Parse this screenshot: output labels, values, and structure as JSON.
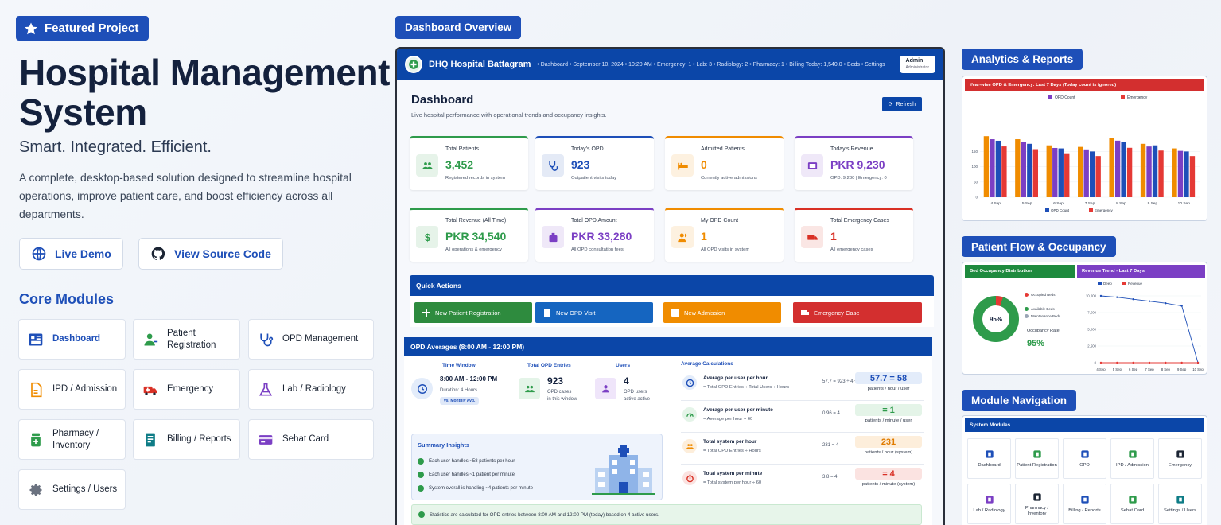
{
  "hero": {
    "badge": "Featured Project",
    "title": "Hospital Management System",
    "tagline": "Smart. Integrated. Efficient.",
    "description": "A complete, desktop-based solution designed to streamline hospital operations, improve patient care, and boost efficiency across all departments.",
    "live_demo": "Live Demo",
    "view_source": "View Source Code"
  },
  "core_modules": {
    "title": "Core Modules",
    "items": [
      "Dashboard",
      "Patient Registration",
      "OPD Management",
      "IPD / Admission",
      "Emergency",
      "Lab / Radiology",
      "Pharmacy / Inventory",
      "Billing / Reports",
      "Sehat Card",
      "Settings / Users"
    ]
  },
  "labels": {
    "dashboard_overview": "Dashboard Overview",
    "analytics": "Analytics & Reports",
    "patient_flow": "Patient Flow & Occupancy",
    "module_nav": "Module Navigation"
  },
  "dashboard": {
    "hospital": "DHQ Hospital Battagram",
    "meta": "•  Dashboard  •  September 10, 2024  •  10:20 AM  •  Emergency: 1  •  Lab: 3  •  Radiology: 2  •  Pharmacy: 1  •  Billing  Today: 1,540.0  •  Beds  •  Settings",
    "admin": "Admin",
    "admin_role": "Administrator",
    "title": "Dashboard",
    "subtitle": "Live hospital performance with operational trends and occupancy insights.",
    "refresh": "Refresh",
    "cards": [
      {
        "label": "Total Patients",
        "value": "3,452",
        "sub": "Registered records in system",
        "color": "#2e9b4b"
      },
      {
        "label": "Today's OPD",
        "value": "923",
        "sub": "Outpatient visits today",
        "color": "#1e4fb8"
      },
      {
        "label": "Admitted Patients",
        "value": "0",
        "sub": "Currently active admissions",
        "color": "#f08c00"
      },
      {
        "label": "Today's Revenue",
        "value": "PKR 9,230",
        "sub": "OPD: 9,230 | Emergency: 0",
        "color": "#7b3fc4"
      },
      {
        "label": "Total Revenue (All Time)",
        "value": "PKR 34,540",
        "sub": "All operations & emergency",
        "color": "#2e9b4b"
      },
      {
        "label": "Total OPD Amount",
        "value": "PKR 33,280",
        "sub": "All OPD consultation fees",
        "color": "#7b3fc4"
      },
      {
        "label": "My OPD Count",
        "value": "1",
        "sub": "All OPD visits in system",
        "color": "#f08c00"
      },
      {
        "label": "Total Emergency Cases",
        "value": "1",
        "sub": "All emergency cases",
        "color": "#d93025"
      }
    ],
    "quick_actions": {
      "title": "Quick Actions",
      "buttons": [
        "New Patient Registration",
        "New OPD Visit",
        "New Admission",
        "Emergency Case"
      ]
    },
    "opd": {
      "title": "OPD Averages (8:00 AM - 12:00 PM)",
      "time_window_label": "Time Window",
      "time_window": "8:00 AM - 12:00 PM",
      "duration": "Duration: 4 Hours",
      "vs": "vs. Monthly Avg.",
      "total_label": "Total OPD Entries",
      "total": "923",
      "total_sub1": "OPD cases",
      "total_sub2": "in this window",
      "users_label": "Users",
      "users": "4",
      "users_sub1": "OPD users",
      "users_sub2": "active active",
      "avg_title": "Average Calculations",
      "rows": [
        {
          "title": "Average per user per hour",
          "formula": "= Total OPD Entries ÷ Total Users ÷ Hours",
          "eq": "57.7 = 923 ÷ 4 ÷ 4",
          "result": "57.7 = 58",
          "unit": "patients / hour / user"
        },
        {
          "title": "Average per user per minute",
          "formula": "= Average per hour ÷ 60",
          "eq": "0.96 = 4",
          "result": "= 1",
          "unit": "patients / minute / user"
        },
        {
          "title": "Total system per hour",
          "formula": "= Total OPD Entries ÷ Hours",
          "eq": "231 = 4",
          "result": "231",
          "unit": "patients / hour (system)"
        },
        {
          "title": "Total system per minute",
          "formula": "= Total system per hour ÷ 60",
          "eq": "3.8 = 4",
          "result": "= 4",
          "unit": "patients / minute (system)"
        }
      ],
      "insights_title": "Summary Insights",
      "insights": [
        "Each user handles ~58 patients per hour",
        "Each user handles ~1 patient per minute",
        "System overall is handling ~4 patients per minute"
      ],
      "note": "Statistics are calculated for OPD entries between 8:00 AM and 12:00 PM (today) based on 4 active users."
    }
  },
  "analytics": {
    "chart_title": "Year-wise OPD & Emergency: Last 7 Days (Today count is ignored)",
    "legend": [
      "OPD Count",
      "Emergency"
    ]
  },
  "patient_flow": {
    "bed_title": "Bed Occupancy Distribution",
    "occupied": "Occupied Beds",
    "available": "Available Beds",
    "maintenance": "Maintenance Beds",
    "rate_label": "Occupancy Rate",
    "rate": "95%",
    "donut_value": "95%",
    "trend_title": "Revenue Trend - Last 7 Days",
    "trend_legend": [
      "Deep",
      "Revenue"
    ]
  },
  "module_nav": {
    "title": "System Modules",
    "items": [
      "Dashboard",
      "Patient Registration",
      "OPD",
      "IPD / Admission",
      "Emergency",
      "Lab / Radiology",
      "Pharmacy / Inventory",
      "Billing / Reports",
      "Sehat Card",
      "Settings / Users"
    ]
  },
  "chart_data": [
    {
      "type": "bar",
      "title": "Year-wise OPD & Emergency: Last 7 Days (Today count is ignored)",
      "categories": [
        "4 Sep",
        "5 Sep",
        "6 Sep",
        "7 Sep",
        "8 Sep",
        "9 Sep",
        "10 Sep"
      ],
      "ylim": [
        0,
        250
      ],
      "series": [
        {
          "name": "OPD Count",
          "values": [
            200,
            190,
            170,
            165,
            195,
            175,
            160
          ]
        },
        {
          "name": "Emergency",
          "values": [
            185,
            175,
            160,
            150,
            180,
            170,
            150
          ]
        }
      ]
    },
    {
      "type": "pie",
      "title": "Bed Occupancy Distribution",
      "categories": [
        "Occupied Beds",
        "Available Beds",
        "Maintenance Beds"
      ],
      "values": [
        95,
        5,
        0
      ]
    },
    {
      "type": "line",
      "title": "Revenue Trend - Last 7 Days",
      "categories": [
        "4 Sep",
        "5 Sep",
        "6 Sep",
        "7 Sep",
        "8 Sep",
        "9 Sep",
        "10 Sep"
      ],
      "ylim": [
        0,
        15000
      ],
      "series": [
        {
          "name": "Deep",
          "values": [
            10000,
            9800,
            9500,
            9200,
            8900,
            8500,
            0
          ]
        },
        {
          "name": "Revenue",
          "values": [
            0,
            0,
            0,
            0,
            0,
            0,
            0
          ]
        }
      ]
    }
  ]
}
